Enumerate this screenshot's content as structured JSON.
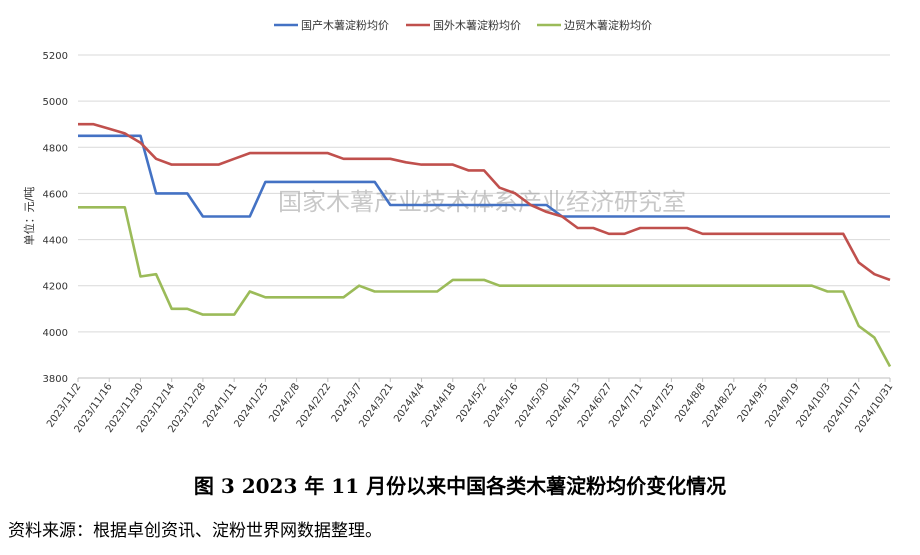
{
  "figure": {
    "title": "图 3   2023 年 11 月份以来中国各类木薯淀粉均价变化情况",
    "source": "资料来源：根据卓创资讯、淀粉世界网数据整理。"
  },
  "watermark": "国家木薯产业技术体系产业经济研究室",
  "chart_data": {
    "type": "line",
    "ylabel": "单位：元/吨",
    "ylim": [
      3800,
      5200
    ],
    "yticks": [
      3800,
      4000,
      4200,
      4400,
      4600,
      4800,
      5000,
      5200
    ],
    "grid": true,
    "legend_position": "top-center",
    "x_ticks": [
      "2023/11/2",
      "2023/11/16",
      "2023/11/30",
      "2023/12/14",
      "2023/12/28",
      "2024/1/11",
      "2024/1/25",
      "2024/2/8",
      "2024/2/22",
      "2024/3/7",
      "2024/3/21",
      "2024/4/4",
      "2024/4/18",
      "2024/5/2",
      "2024/5/16",
      "2024/5/30",
      "2024/6/13",
      "2024/6/27",
      "2024/7/11",
      "2024/7/25",
      "2024/8/8",
      "2024/8/22",
      "2024/9/5",
      "2024/9/19",
      "2024/10/3",
      "2024/10/17",
      "2024/10/31"
    ],
    "x_dates": [
      "2023/11/2",
      "2023/11/9",
      "2023/11/16",
      "2023/11/23",
      "2023/11/30",
      "2023/12/7",
      "2023/12/14",
      "2023/12/21",
      "2023/12/28",
      "2024/1/4",
      "2024/1/11",
      "2024/1/18",
      "2024/1/25",
      "2024/2/1",
      "2024/2/8",
      "2024/2/15",
      "2024/2/22",
      "2024/2/29",
      "2024/3/7",
      "2024/3/14",
      "2024/3/21",
      "2024/3/28",
      "2024/4/4",
      "2024/4/11",
      "2024/4/18",
      "2024/4/25",
      "2024/5/2",
      "2024/5/9",
      "2024/5/16",
      "2024/5/23",
      "2024/5/30",
      "2024/6/6",
      "2024/6/13",
      "2024/6/20",
      "2024/6/27",
      "2024/7/4",
      "2024/7/11",
      "2024/7/18",
      "2024/7/25",
      "2024/8/1",
      "2024/8/8",
      "2024/8/15",
      "2024/8/22",
      "2024/8/29",
      "2024/9/5",
      "2024/9/12",
      "2024/9/19",
      "2024/9/26",
      "2024/10/3",
      "2024/10/10",
      "2024/10/17",
      "2024/10/24",
      "2024/10/31"
    ],
    "series": [
      {
        "name": "国产木薯淀粉均价",
        "color": "#4472c4",
        "values": [
          4850,
          4850,
          4850,
          4850,
          4850,
          4600,
          4600,
          4600,
          4500,
          4500,
          4500,
          4500,
          4650,
          4650,
          4650,
          4650,
          4650,
          4650,
          4650,
          4650,
          4550,
          4550,
          4550,
          4550,
          4550,
          4550,
          4550,
          4550,
          4550,
          4550,
          4550,
          4500,
          4500,
          4500,
          4500,
          4500,
          4500,
          4500,
          4500,
          4500,
          4500,
          4500,
          4500,
          4500,
          4500,
          4500,
          4500,
          4500,
          4500,
          4500,
          4500,
          4500,
          4500
        ]
      },
      {
        "name": "国外木薯淀粉均价",
        "color": "#c0504d",
        "values": [
          4900,
          4900,
          4880,
          4860,
          4820,
          4750,
          4725,
          4725,
          4725,
          4725,
          4750,
          4775,
          4775,
          4775,
          4775,
          4775,
          4775,
          4750,
          4750,
          4750,
          4750,
          4735,
          4725,
          4725,
          4725,
          4700,
          4700,
          4625,
          4600,
          4550,
          4520,
          4500,
          4450,
          4450,
          4425,
          4425,
          4450,
          4450,
          4450,
          4450,
          4425,
          4425,
          4425,
          4425,
          4425,
          4425,
          4425,
          4425,
          4425,
          4425,
          4300,
          4250,
          4225
        ]
      },
      {
        "name": "边贸木薯淀粉均价",
        "color": "#9bbb59",
        "values": [
          4540,
          4540,
          4540,
          4540,
          4240,
          4250,
          4100,
          4100,
          4075,
          4075,
          4075,
          4175,
          4150,
          4150,
          4150,
          4150,
          4150,
          4150,
          4200,
          4175,
          4175,
          4175,
          4175,
          4175,
          4225,
          4225,
          4225,
          4200,
          4200,
          4200,
          4200,
          4200,
          4200,
          4200,
          4200,
          4200,
          4200,
          4200,
          4200,
          4200,
          4200,
          4200,
          4200,
          4200,
          4200,
          4200,
          4200,
          4200,
          4175,
          4175,
          4025,
          3975,
          3850
        ]
      }
    ]
  }
}
